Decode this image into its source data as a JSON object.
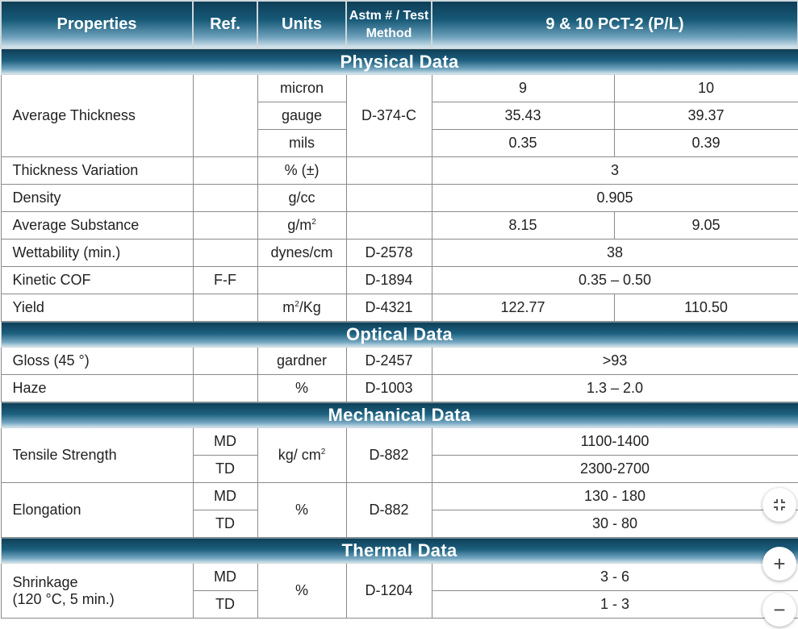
{
  "header": {
    "properties": "Properties",
    "ref": "Ref.",
    "units": "Units",
    "method_line1": "Astm # / Test",
    "method_line2": "Method",
    "product": "9 & 10 PCT-2 (P/L)"
  },
  "sections": {
    "physical": "Physical Data",
    "optical": "Optical Data",
    "mechanical": "Mechanical Data",
    "thermal": "Thermal Data"
  },
  "physical": {
    "avg_thickness": {
      "label": "Average Thickness",
      "method": "D-374-C",
      "rows": [
        {
          "unit": "micron",
          "v9": "9",
          "v10": "10"
        },
        {
          "unit": "gauge",
          "v9": "35.43",
          "v10": "39.37"
        },
        {
          "unit": "mils",
          "v9": "0.35",
          "v10": "0.39"
        }
      ]
    },
    "thickness_variation": {
      "label": "Thickness Variation",
      "unit": "% (±)",
      "value": "3"
    },
    "density": {
      "label": "Density",
      "unit": "g/cc",
      "value": "0.905"
    },
    "avg_substance": {
      "label": "Average Substance",
      "unit": "g/m",
      "unit_sup": "2",
      "v9": "8.15",
      "v10": "9.05"
    },
    "wettability": {
      "label": "Wettability (min.)",
      "unit": "dynes/cm",
      "method": "D-2578",
      "value": "38"
    },
    "kinetic_cof": {
      "label": "Kinetic COF",
      "ref": "F-F",
      "method": "D-1894",
      "value": "0.35 – 0.50"
    },
    "yield": {
      "label": "Yield",
      "unit_pre": "m",
      "unit_sup": "2",
      "unit_post": "/Kg",
      "method": "D-4321",
      "v9": "122.77",
      "v10": "110.50"
    }
  },
  "optical": {
    "gloss": {
      "label": "Gloss (45 °)",
      "unit": "gardner",
      "method": "D-2457",
      "value": ">93"
    },
    "haze": {
      "label": "Haze",
      "unit": "%",
      "method": "D-1003",
      "value": "1.3 – 2.0"
    }
  },
  "mechanical": {
    "tensile": {
      "label": "Tensile Strength",
      "unit": "kg/ cm",
      "unit_sup": "2",
      "method": "D-882",
      "md_ref": "MD",
      "md_value": "1100-1400",
      "td_ref": "TD",
      "td_value": "2300-2700"
    },
    "elongation": {
      "label": "Elongation",
      "unit": "%",
      "method": "D-882",
      "md_ref": "MD",
      "md_value": "130 - 180",
      "td_ref": "TD",
      "td_value": "30 - 80"
    }
  },
  "thermal": {
    "shrinkage": {
      "label_line1": "Shrinkage",
      "label_line2": "(120 °C, 5 min.)",
      "unit": "%",
      "method": "D-1204",
      "md_ref": "MD",
      "md_value": "3 - 6",
      "td_ref": "TD",
      "td_value": "1 - 3"
    }
  },
  "controls": {
    "zoom_in": "+",
    "zoom_out": "−",
    "fit_icon": "fit-screen-icon"
  }
}
